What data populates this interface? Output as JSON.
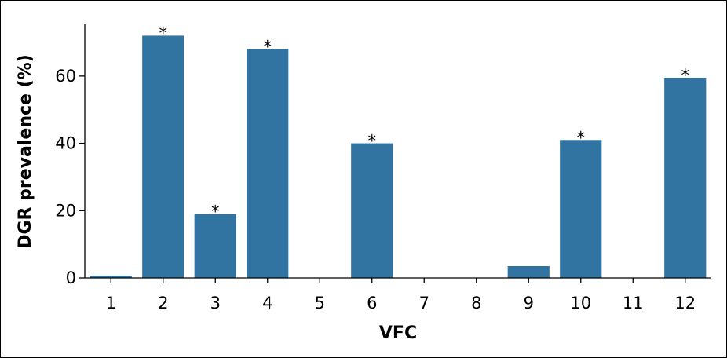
{
  "chart_data": {
    "type": "bar",
    "x_label": "VFC",
    "y_label": "DGR prevalence (%)",
    "categories": [
      "1",
      "2",
      "3",
      "4",
      "5",
      "6",
      "7",
      "8",
      "9",
      "10",
      "11",
      "12"
    ],
    "values": [
      0.7,
      72,
      19,
      68,
      0,
      40,
      0,
      0,
      3.5,
      41,
      0,
      59.5
    ],
    "markers": [
      null,
      "*",
      "*",
      "*",
      null,
      "*",
      null,
      null,
      null,
      "*",
      null,
      "*"
    ],
    "color": "#3274a1",
    "ylim": [
      0,
      75.6
    ],
    "yticks": [
      0,
      20,
      40,
      60
    ]
  }
}
